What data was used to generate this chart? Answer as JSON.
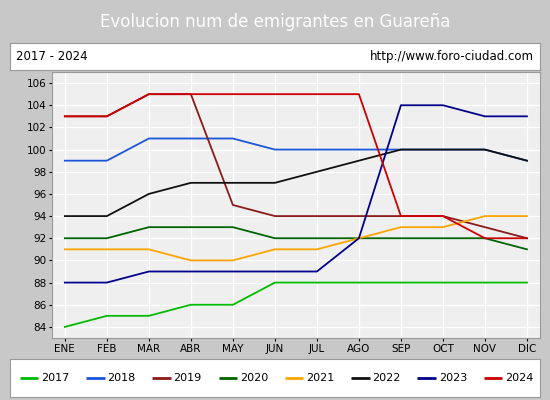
{
  "title": "Evolucion num de emigrantes en Guareña",
  "title_bg": "#5b9bd5",
  "subtitle_left": "2017 - 2024",
  "subtitle_right": "http://www.foro-ciudad.com",
  "months": [
    "ENE",
    "FEB",
    "MAR",
    "ABR",
    "MAY",
    "JUN",
    "JUL",
    "AGO",
    "SEP",
    "OCT",
    "NOV",
    "DIC"
  ],
  "ylim": [
    83,
    107
  ],
  "yticks": [
    84,
    86,
    88,
    90,
    92,
    94,
    96,
    98,
    100,
    102,
    104,
    106
  ],
  "series": {
    "2017": {
      "color": "#00bb00",
      "values": [
        84,
        85,
        85,
        86,
        86,
        88,
        88,
        88,
        88,
        88,
        88,
        88
      ]
    },
    "2018": {
      "color": "#1a56db",
      "values": [
        99,
        99,
        101,
        101,
        101,
        100,
        100,
        100,
        100,
        100,
        100,
        99
      ]
    },
    "2019": {
      "color": "#8b1a1a",
      "values": [
        103,
        103,
        105,
        105,
        95,
        94,
        94,
        94,
        94,
        94,
        93,
        92
      ]
    },
    "2020": {
      "color": "#006400",
      "values": [
        92,
        92,
        93,
        93,
        93,
        92,
        92,
        92,
        92,
        92,
        92,
        91
      ]
    },
    "2021": {
      "color": "#ffa500",
      "values": [
        91,
        91,
        91,
        90,
        90,
        91,
        91,
        92,
        93,
        93,
        94,
        94
      ]
    },
    "2022": {
      "color": "#111111",
      "values": [
        94,
        94,
        96,
        97,
        97,
        97,
        98,
        99,
        100,
        100,
        100,
        99
      ]
    },
    "2023": {
      "color": "#00008b",
      "values": [
        88,
        88,
        89,
        89,
        89,
        89,
        89,
        92,
        104,
        104,
        103,
        103
      ]
    },
    "2024": {
      "color": "#cc0000",
      "values": [
        103,
        103,
        105,
        105,
        105,
        105,
        105,
        105,
        94,
        94,
        92,
        92
      ]
    }
  },
  "legend_order": [
    "2017",
    "2018",
    "2019",
    "2020",
    "2021",
    "2022",
    "2023",
    "2024"
  ],
  "bg_plot": "#efefef",
  "bg_outer": "#c8c8c8",
  "border_color": "#999999"
}
